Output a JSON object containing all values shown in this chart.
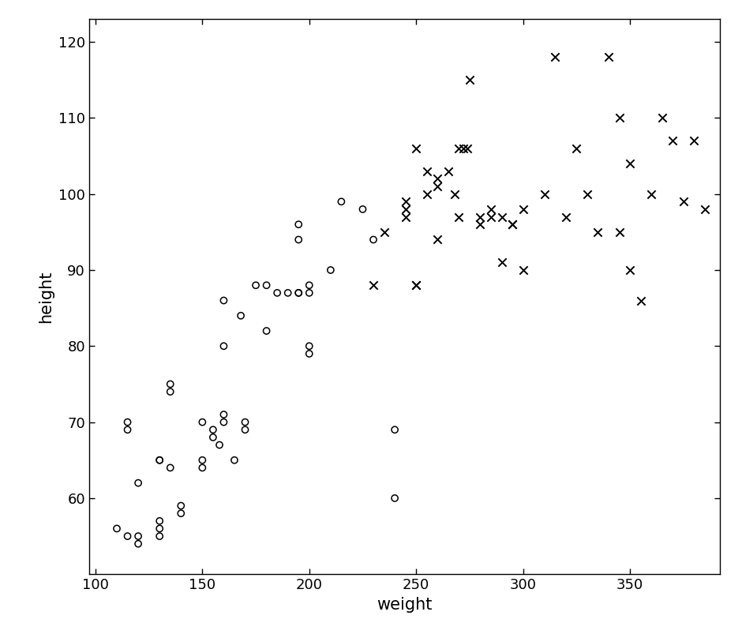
{
  "circles": [
    [
      110,
      56
    ],
    [
      115,
      55
    ],
    [
      120,
      54
    ],
    [
      120,
      55
    ],
    [
      115,
      70
    ],
    [
      115,
      69
    ],
    [
      120,
      62
    ],
    [
      130,
      55
    ],
    [
      130,
      56
    ],
    [
      130,
      57
    ],
    [
      130,
      65
    ],
    [
      130,
      65
    ],
    [
      135,
      64
    ],
    [
      135,
      75
    ],
    [
      135,
      74
    ],
    [
      140,
      59
    ],
    [
      140,
      58
    ],
    [
      150,
      65
    ],
    [
      150,
      64
    ],
    [
      150,
      70
    ],
    [
      155,
      69
    ],
    [
      155,
      68
    ],
    [
      158,
      67
    ],
    [
      160,
      71
    ],
    [
      160,
      70
    ],
    [
      160,
      80
    ],
    [
      160,
      86
    ],
    [
      165,
      65
    ],
    [
      168,
      84
    ],
    [
      170,
      69
    ],
    [
      170,
      70
    ],
    [
      175,
      88
    ],
    [
      180,
      88
    ],
    [
      180,
      82
    ],
    [
      185,
      87
    ],
    [
      190,
      87
    ],
    [
      195,
      87
    ],
    [
      195,
      87
    ],
    [
      200,
      88
    ],
    [
      200,
      87
    ],
    [
      195,
      94
    ],
    [
      200,
      80
    ],
    [
      200,
      79
    ],
    [
      210,
      90
    ],
    [
      215,
      99
    ],
    [
      225,
      98
    ],
    [
      195,
      96
    ],
    [
      230,
      94
    ],
    [
      240,
      60
    ],
    [
      240,
      69
    ]
  ],
  "crosses": [
    [
      230,
      88
    ],
    [
      235,
      95
    ],
    [
      245,
      99
    ],
    [
      245,
      98
    ],
    [
      245,
      97
    ],
    [
      250,
      88
    ],
    [
      250,
      88
    ],
    [
      250,
      106
    ],
    [
      255,
      103
    ],
    [
      255,
      100
    ],
    [
      260,
      102
    ],
    [
      260,
      101
    ],
    [
      260,
      94
    ],
    [
      265,
      103
    ],
    [
      268,
      100
    ],
    [
      270,
      97
    ],
    [
      270,
      106
    ],
    [
      272,
      106
    ],
    [
      274,
      106
    ],
    [
      275,
      115
    ],
    [
      280,
      97
    ],
    [
      280,
      96
    ],
    [
      285,
      98
    ],
    [
      285,
      97
    ],
    [
      290,
      91
    ],
    [
      290,
      97
    ],
    [
      295,
      96
    ],
    [
      295,
      96
    ],
    [
      300,
      98
    ],
    [
      300,
      90
    ],
    [
      310,
      100
    ],
    [
      315,
      118
    ],
    [
      320,
      97
    ],
    [
      325,
      106
    ],
    [
      330,
      100
    ],
    [
      335,
      95
    ],
    [
      340,
      118
    ],
    [
      345,
      95
    ],
    [
      345,
      110
    ],
    [
      350,
      90
    ],
    [
      350,
      104
    ],
    [
      355,
      86
    ],
    [
      360,
      100
    ],
    [
      365,
      110
    ],
    [
      370,
      107
    ],
    [
      375,
      99
    ],
    [
      380,
      107
    ],
    [
      385,
      98
    ]
  ],
  "xlim": [
    97,
    392
  ],
  "ylim": [
    50,
    123
  ],
  "xticks": [
    100,
    150,
    200,
    250,
    300,
    350
  ],
  "yticks": [
    60,
    70,
    80,
    90,
    100,
    110,
    120
  ],
  "xlabel": "weight",
  "ylabel": "height",
  "bg_color": "#ffffff",
  "marker_color": "black",
  "circle_size": 35,
  "cross_size": 55,
  "tick_labelsize": 13,
  "label_fontsize": 15
}
